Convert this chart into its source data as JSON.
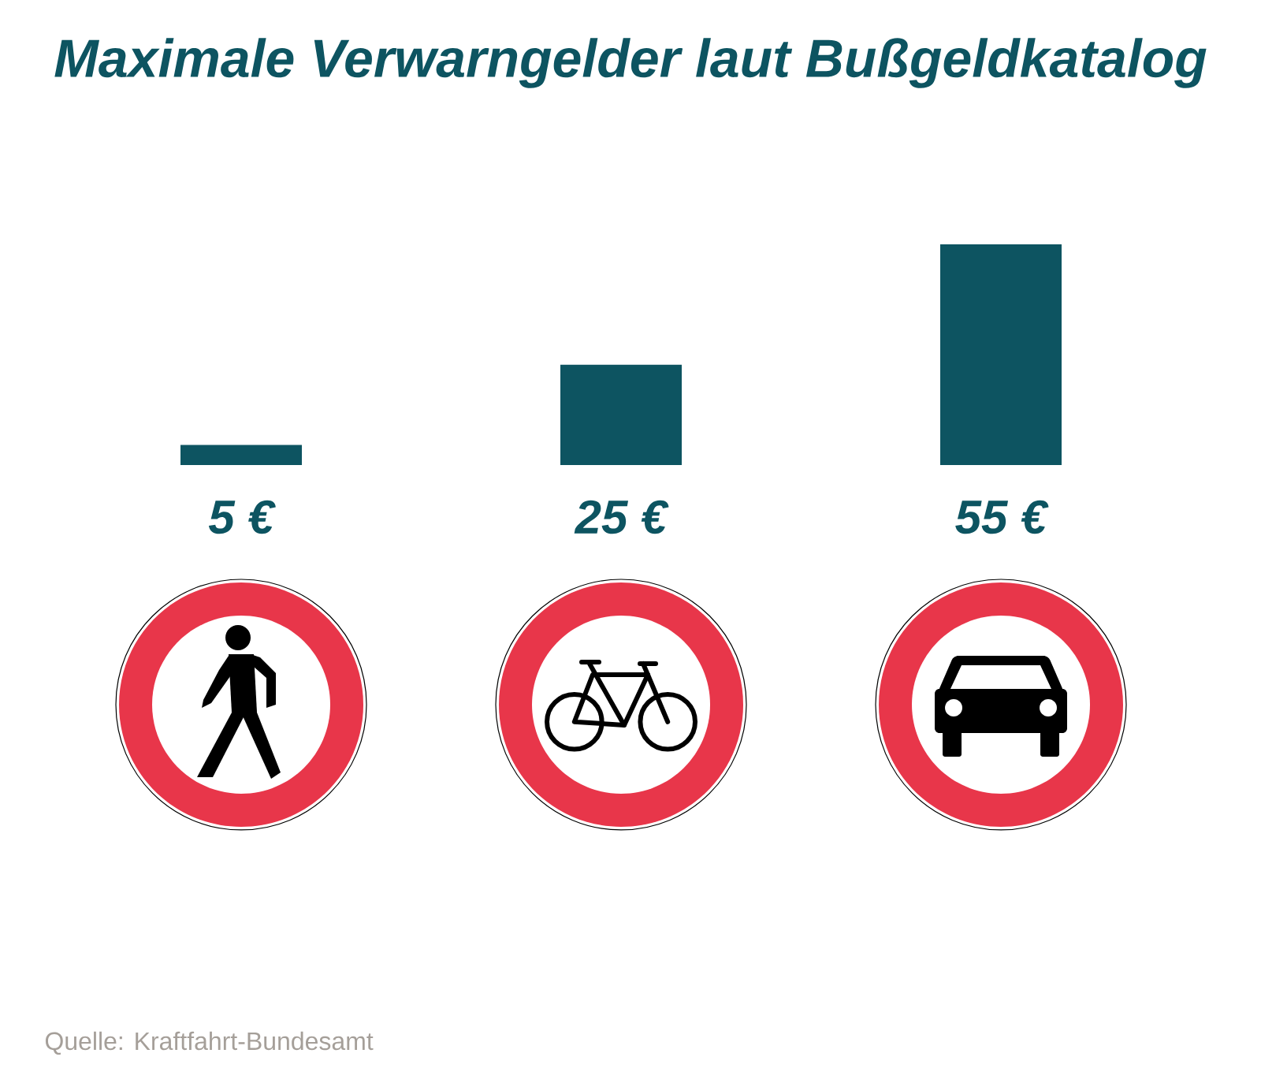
{
  "chart_data": {
    "type": "bar",
    "title": "Maximale Verwarngelder laut Bußgeldkatalog",
    "categories": [
      null,
      null,
      null
    ],
    "values": [
      5,
      25,
      55
    ],
    "value_labels": [
      "5 €",
      "25 €",
      "55 €"
    ],
    "color": "#0d5461",
    "annotations": [
      "Quelle: Kraftfahrt-Bundesamt"
    ]
  }
}
